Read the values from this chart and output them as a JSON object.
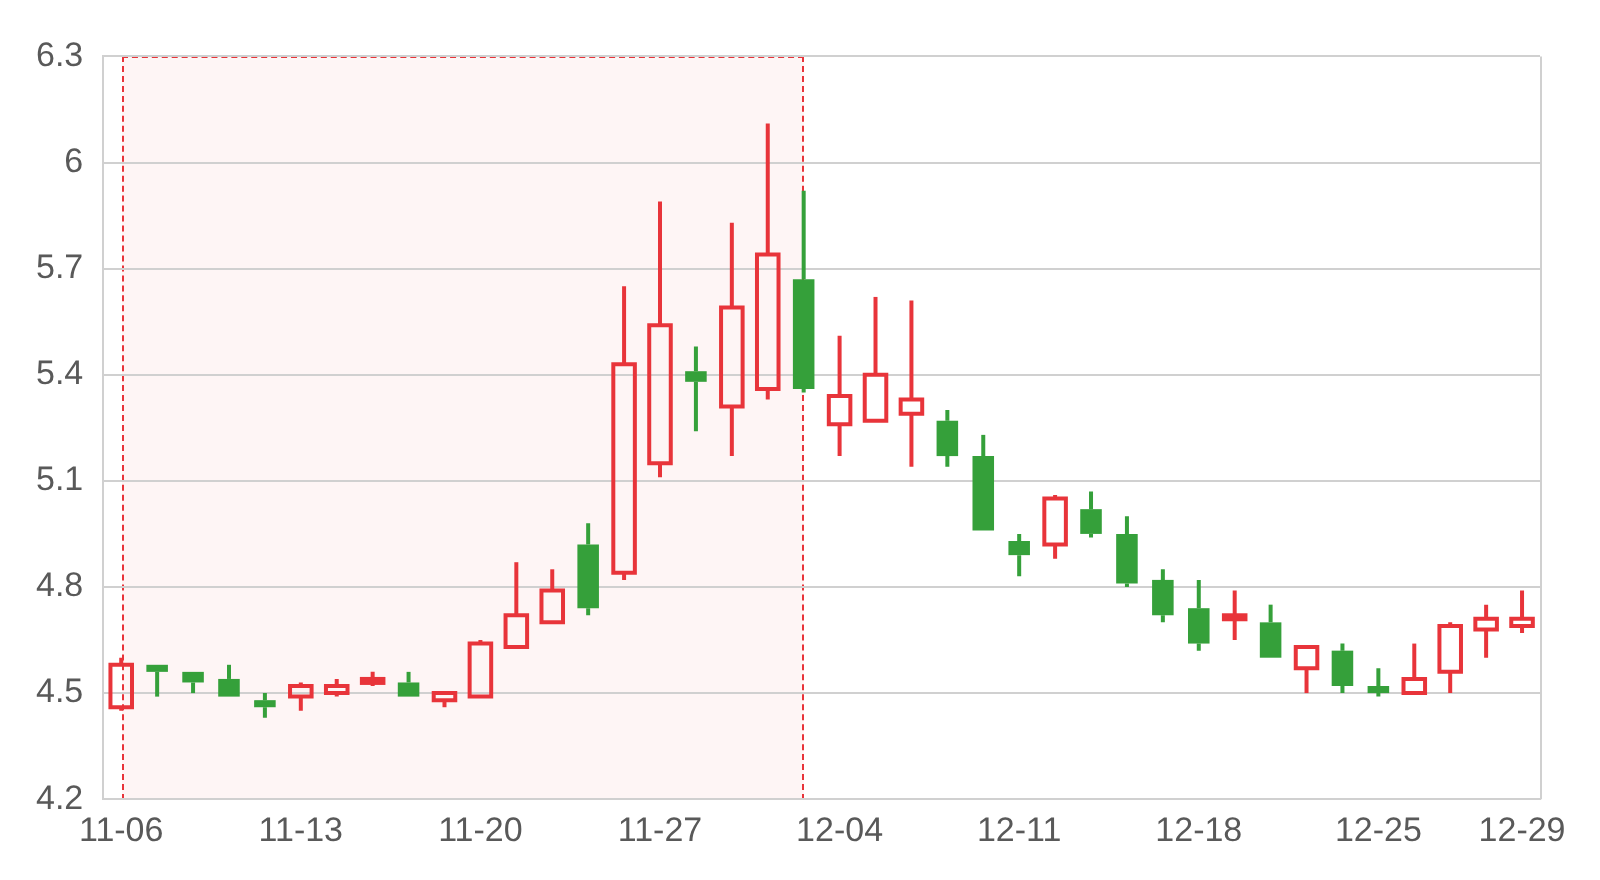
{
  "chart_data": {
    "type": "candlestick",
    "categories": [
      "11-06",
      null,
      null,
      null,
      null,
      "11-13",
      null,
      null,
      null,
      null,
      "11-20",
      null,
      null,
      null,
      null,
      "11-27",
      null,
      null,
      null,
      null,
      "12-04",
      null,
      null,
      null,
      null,
      "12-11",
      null,
      null,
      null,
      null,
      "12-18",
      null,
      null,
      null,
      null,
      "12-25",
      null,
      null,
      null,
      "12-29"
    ],
    "ohlc": [
      [
        4.46,
        4.6,
        4.45,
        4.58
      ],
      [
        4.58,
        4.58,
        4.49,
        4.56
      ],
      [
        4.56,
        4.56,
        4.5,
        4.53
      ],
      [
        4.54,
        4.58,
        4.49,
        4.49
      ],
      [
        4.48,
        4.5,
        4.43,
        4.46
      ],
      [
        4.49,
        4.53,
        4.45,
        4.52
      ],
      [
        4.5,
        4.54,
        4.49,
        4.52
      ],
      [
        4.53,
        4.56,
        4.52,
        4.54
      ],
      [
        4.53,
        4.56,
        4.49,
        4.49
      ],
      [
        4.48,
        4.5,
        4.46,
        4.5
      ],
      [
        4.49,
        4.65,
        4.49,
        4.64
      ],
      [
        4.63,
        4.87,
        4.63,
        4.72
      ],
      [
        4.7,
        4.85,
        4.7,
        4.79
      ],
      [
        4.92,
        4.98,
        4.72,
        4.74
      ],
      [
        4.84,
        5.65,
        4.82,
        5.43
      ],
      [
        5.15,
        5.89,
        5.11,
        5.54
      ],
      [
        5.41,
        5.48,
        5.24,
        5.38
      ],
      [
        5.31,
        5.83,
        5.17,
        5.59
      ],
      [
        5.36,
        6.11,
        5.33,
        5.74
      ],
      [
        5.67,
        5.92,
        5.35,
        5.36
      ],
      [
        5.26,
        5.51,
        5.17,
        5.34
      ],
      [
        5.27,
        5.62,
        5.27,
        5.4
      ],
      [
        5.29,
        5.61,
        5.14,
        5.33
      ],
      [
        5.27,
        5.3,
        5.14,
        5.17
      ],
      [
        5.17,
        5.23,
        4.96,
        4.96
      ],
      [
        4.93,
        4.95,
        4.83,
        4.89
      ],
      [
        4.92,
        5.06,
        4.88,
        5.05
      ],
      [
        5.02,
        5.07,
        4.94,
        4.95
      ],
      [
        4.95,
        5.0,
        4.8,
        4.81
      ],
      [
        4.82,
        4.85,
        4.7,
        4.72
      ],
      [
        4.74,
        4.82,
        4.62,
        4.64
      ],
      [
        4.71,
        4.79,
        4.65,
        4.72
      ],
      [
        4.7,
        4.75,
        4.6,
        4.6
      ],
      [
        4.57,
        4.63,
        4.5,
        4.63
      ],
      [
        4.62,
        4.64,
        4.5,
        4.52
      ],
      [
        4.52,
        4.57,
        4.49,
        4.5
      ],
      [
        4.5,
        4.64,
        4.5,
        4.54
      ],
      [
        4.56,
        4.7,
        4.5,
        4.69
      ],
      [
        4.68,
        4.75,
        4.6,
        4.71
      ],
      [
        4.69,
        4.79,
        4.67,
        4.71
      ]
    ],
    "colors": [
      "#e8343a",
      "#35a03a",
      "#35a03a",
      "#35a03a",
      "#35a03a",
      "#e8343a",
      "#e8343a",
      "#e8343a",
      "#35a03a",
      "#e8343a",
      "#e8343a",
      "#e8343a",
      "#e8343a",
      "#35a03a",
      "#e8343a",
      "#e8343a",
      "#35a03a",
      "#e8343a",
      "#e8343a",
      "#35a03a",
      "#e8343a",
      "#e8343a",
      "#e8343a",
      "#35a03a",
      "#35a03a",
      "#35a03a",
      "#e8343a",
      "#35a03a",
      "#35a03a",
      "#35a03a",
      "#35a03a",
      "#e8343a",
      "#35a03a",
      "#e8343a",
      "#35a03a",
      "#35a03a",
      "#e8343a",
      "#e8343a",
      "#e8343a",
      "#e8343a"
    ],
    "ylim": [
      4.2,
      6.3
    ],
    "yticks": [
      4.2,
      4.5,
      4.8,
      5.1,
      5.4,
      5.7,
      6,
      6.3
    ],
    "grid": "y"
  }
}
